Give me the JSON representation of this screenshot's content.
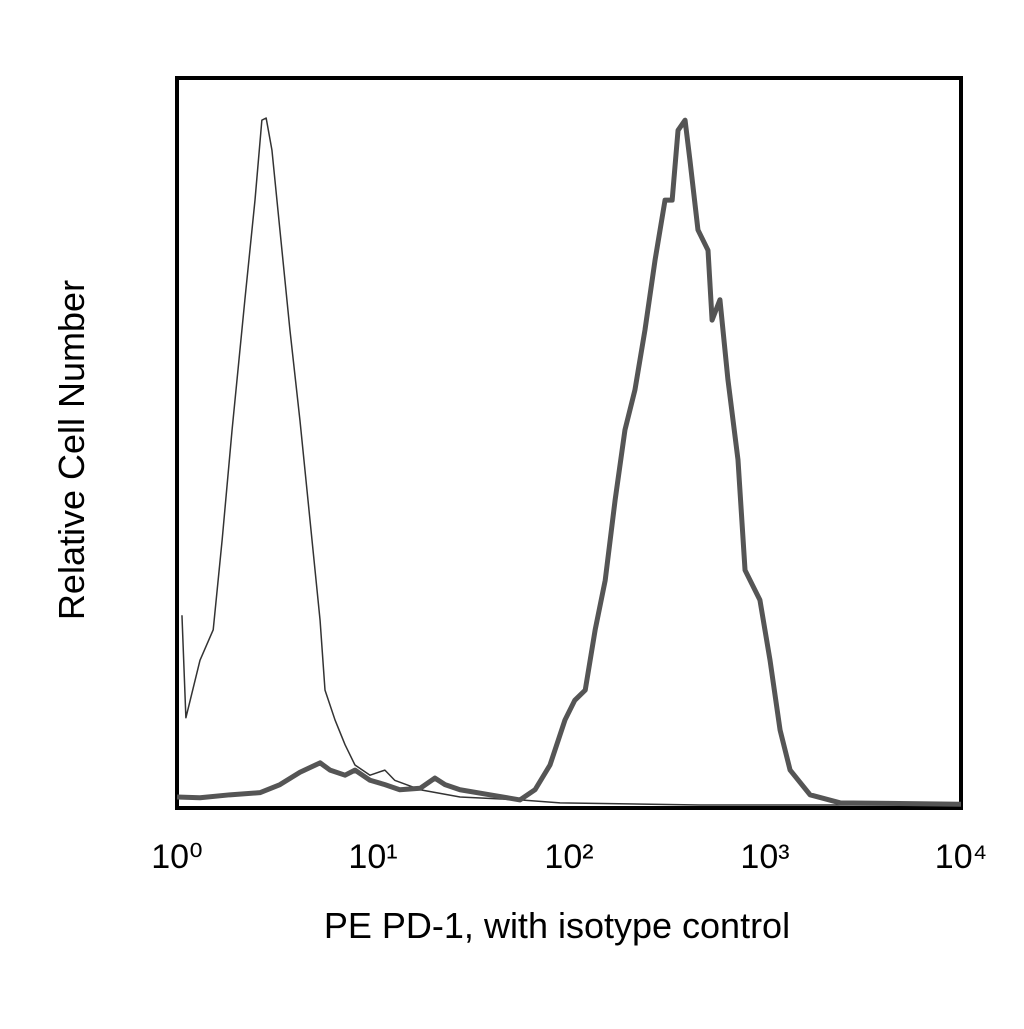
{
  "chart_data": {
    "type": "line",
    "xlabel": "PE PD-1, with isotype control",
    "ylabel": "Relative Cell Number",
    "xscale": "log",
    "xlim": [
      1,
      10000
    ],
    "xticks": [
      {
        "value": 1,
        "label": "10⁰"
      },
      {
        "value": 10,
        "label": "10¹"
      },
      {
        "value": 100,
        "label": "10²"
      },
      {
        "value": 1000,
        "label": "10³"
      },
      {
        "value": 10000,
        "label": "10⁴"
      }
    ],
    "ylim": [
      0,
      100
    ],
    "grid": false,
    "series": [
      {
        "color": "#333333",
        "line_width": 1.5,
        "x": [
          1.06,
          1.11,
          1.31,
          1.53,
          1.7,
          1.91,
          2.22,
          2.5,
          2.71,
          2.85,
          3.05,
          3.35,
          3.77,
          4.24,
          4.77,
          5.37,
          5.69,
          6.4,
          7.2,
          8.09,
          9.66,
          11.5,
          12.9,
          17.4,
          27.8,
          56.2,
          90,
          466,
          10000
        ],
        "values": [
          26.1,
          12.0,
          19.9,
          24.1,
          36.5,
          51.6,
          69.5,
          83.2,
          94.2,
          94.5,
          90.1,
          79.1,
          65.3,
          52.9,
          39.2,
          25.4,
          15.8,
          11.7,
          8.3,
          5.5,
          4.1,
          4.8,
          3.4,
          2.1,
          1.1,
          0.7,
          0.3,
          0,
          0
        ]
      },
      {
        "color": "#555555",
        "line_width": 5,
        "x": [
          1,
          1.31,
          1.86,
          2.65,
          3.35,
          4.24,
          5.37,
          6.04,
          7.2,
          8.09,
          9.66,
          11.5,
          13.7,
          17.4,
          20.7,
          23.3,
          27.8,
          39.5,
          56.2,
          67.1,
          80.0,
          95.4,
          107,
          121,
          136,
          153,
          172,
          193,
          217,
          244,
          275,
          309,
          336,
          360,
          391,
          414,
          455,
          512,
          537,
          589,
          647,
          728,
          791,
          942,
          1061,
          1194,
          1343,
          1698,
          2415,
          10000
        ],
        "values": [
          1.1,
          1.0,
          1.4,
          1.7,
          2.8,
          4.5,
          5.8,
          4.8,
          4.1,
          4.8,
          3.4,
          2.8,
          2.1,
          2.3,
          3.7,
          2.8,
          2.1,
          1.4,
          0.7,
          2.1,
          5.5,
          11.7,
          14.4,
          15.8,
          24.1,
          30.9,
          42.0,
          51.6,
          57.1,
          65.3,
          75.0,
          83.2,
          83.2,
          92.8,
          94.2,
          88.7,
          79.1,
          76.3,
          66.7,
          69.5,
          58.5,
          47.5,
          32.3,
          28.2,
          19.9,
          10.3,
          4.8,
          1.4,
          0.3,
          0.1
        ]
      }
    ]
  }
}
